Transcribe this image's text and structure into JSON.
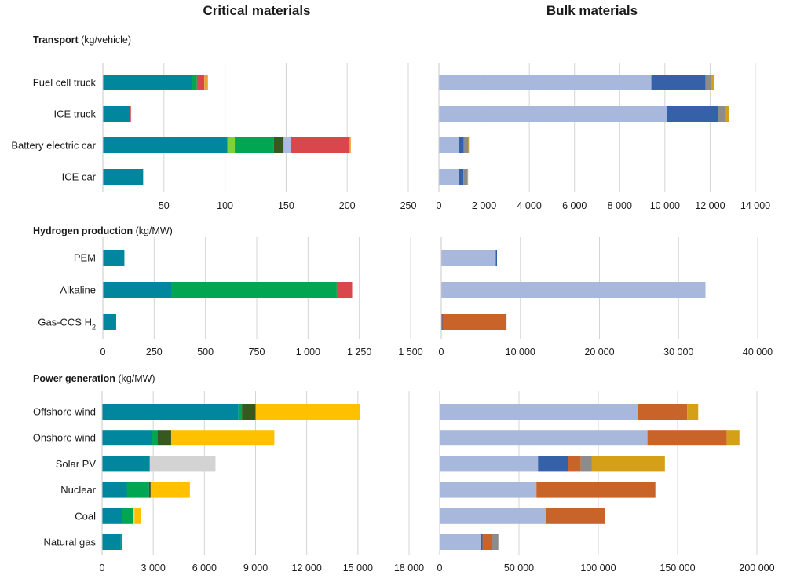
{
  "column_titles": {
    "critical": "Critical materials",
    "bulk": "Bulk materials"
  },
  "sections": [
    {
      "title": "Transport",
      "unit": "(kg/vehicle)"
    },
    {
      "title": "Hydrogen production",
      "unit": "(kg/MW)"
    },
    {
      "title": "Power generation",
      "unit": "(kg/MW)"
    }
  ],
  "chart_data": [
    {
      "type": "bar",
      "orientation": "horizontal",
      "stacked": true,
      "panel": "Transport - Critical materials",
      "categories": [
        "Fuel cell truck",
        "ICE truck",
        "Battery electric car",
        "ICE car"
      ],
      "xlim": [
        0,
        250
      ],
      "ticks": [
        {
          "v": 50,
          "label": "50"
        },
        {
          "v": 100,
          "label": "100"
        },
        {
          "v": 150,
          "label": "150"
        },
        {
          "v": 200,
          "label": "200"
        },
        {
          "v": 250,
          "label": "250"
        }
      ],
      "series": [
        {
          "color": "#00879e",
          "values": [
            73,
            22,
            102,
            33
          ]
        },
        {
          "color": "#00a651",
          "values": [
            4,
            0,
            0,
            0
          ]
        },
        {
          "color": "#7fd13b",
          "values": [
            0,
            0,
            6,
            0
          ]
        },
        {
          "color": "#00a651",
          "values": [
            0,
            0,
            32,
            0
          ]
        },
        {
          "color": "#37581f",
          "values": [
            0,
            0,
            8,
            0
          ]
        },
        {
          "color": "#aebce0",
          "values": [
            0,
            0,
            6,
            0
          ]
        },
        {
          "color": "#d9464c",
          "values": [
            6,
            1,
            48,
            0
          ]
        },
        {
          "color": "#e6a33a",
          "values": [
            3,
            0,
            1,
            0
          ]
        }
      ]
    },
    {
      "type": "bar",
      "orientation": "horizontal",
      "stacked": true,
      "panel": "Transport - Bulk materials",
      "categories": [
        "Fuel cell truck",
        "ICE truck",
        "Battery electric car",
        "ICE car"
      ],
      "xlim": [
        0,
        14000
      ],
      "ticks": [
        {
          "v": 0,
          "label": "0"
        },
        {
          "v": 2000,
          "label": "2 000"
        },
        {
          "v": 4000,
          "label": "4 000"
        },
        {
          "v": 6000,
          "label": "6 000"
        },
        {
          "v": 8000,
          "label": "8 000"
        },
        {
          "v": 10000,
          "label": "10 000"
        },
        {
          "v": 12000,
          "label": "12 000"
        },
        {
          "v": 14000,
          "label": "14 000"
        }
      ],
      "series": [
        {
          "color": "#a8b7dc",
          "values": [
            9400,
            10100,
            900,
            900
          ]
        },
        {
          "color": "#3461a8",
          "values": [
            2400,
            2250,
            200,
            180
          ]
        },
        {
          "color": "#8c8c8c",
          "values": [
            250,
            350,
            200,
            180
          ]
        },
        {
          "color": "#d4a017",
          "values": [
            120,
            130,
            30,
            30
          ]
        }
      ]
    },
    {
      "type": "bar",
      "orientation": "horizontal",
      "stacked": true,
      "panel": "Hydrogen production - Critical materials",
      "categories": [
        "PEM",
        "Alkaline",
        "Gas-CCS H2"
      ],
      "xlim": [
        0,
        1500
      ],
      "ticks": [
        {
          "v": 0,
          "label": "0"
        },
        {
          "v": 250,
          "label": "250"
        },
        {
          "v": 500,
          "label": "500"
        },
        {
          "v": 750,
          "label": "750"
        },
        {
          "v": 1000,
          "label": "1 000"
        },
        {
          "v": 1250,
          "label": "1 250"
        },
        {
          "v": 1500,
          "label": "1 500"
        }
      ],
      "series": [
        {
          "color": "#00879e",
          "values": [
            105,
            335,
            65
          ]
        },
        {
          "color": "#00a651",
          "values": [
            0,
            805,
            0
          ]
        },
        {
          "color": "#d9464c",
          "values": [
            0,
            75,
            0
          ]
        }
      ]
    },
    {
      "type": "bar",
      "orientation": "horizontal",
      "stacked": true,
      "panel": "Hydrogen production - Bulk materials",
      "categories": [
        "PEM",
        "Alkaline",
        "Gas-CCS H2"
      ],
      "xlim": [
        0,
        40000
      ],
      "ticks": [
        {
          "v": 0,
          "label": "0"
        },
        {
          "v": 10000,
          "label": "10 000"
        },
        {
          "v": 20000,
          "label": "20 000"
        },
        {
          "v": 30000,
          "label": "30 000"
        },
        {
          "v": 40000,
          "label": "40 000"
        }
      ],
      "series": [
        {
          "color": "#a8b7dc",
          "values": [
            6900,
            33400,
            0
          ]
        },
        {
          "color": "#3461a8",
          "values": [
            150,
            0,
            150
          ]
        },
        {
          "color": "#c8642a",
          "values": [
            0,
            0,
            8100
          ]
        }
      ]
    },
    {
      "type": "bar",
      "orientation": "horizontal",
      "stacked": true,
      "panel": "Power generation - Critical materials",
      "categories": [
        "Offshore wind",
        "Onshore wind",
        "Solar PV",
        "Nuclear",
        "Coal",
        "Natural gas"
      ],
      "xlim": [
        0,
        18000
      ],
      "ticks": [
        {
          "v": 0,
          "label": "0"
        },
        {
          "v": 3000,
          "label": "3 000"
        },
        {
          "v": 6000,
          "label": "6 000"
        },
        {
          "v": 9000,
          "label": "9 000"
        },
        {
          "v": 12000,
          "label": "12 000"
        },
        {
          "v": 15000,
          "label": "15 000"
        },
        {
          "v": 18000,
          "label": "18 000"
        }
      ],
      "series": [
        {
          "color": "#00879e",
          "values": [
            8000,
            2900,
            2800,
            1450,
            1150,
            1100
          ]
        },
        {
          "color": "#00a651",
          "values": [
            200,
            350,
            0,
            1300,
            650,
            100
          ]
        },
        {
          "color": "#37581f",
          "values": [
            800,
            800,
            0,
            100,
            0,
            0
          ]
        },
        {
          "color": "#d3d3d3",
          "values": [
            0,
            0,
            3850,
            0,
            100,
            0
          ]
        },
        {
          "color": "#ffc000",
          "values": [
            6100,
            6050,
            0,
            2300,
            400,
            0
          ]
        }
      ]
    },
    {
      "type": "bar",
      "orientation": "horizontal",
      "stacked": true,
      "panel": "Power generation - Bulk materials",
      "categories": [
        "Offshore wind",
        "Onshore wind",
        "Solar PV",
        "Nuclear",
        "Coal",
        "Natural gas"
      ],
      "xlim": [
        0,
        200000
      ],
      "ticks": [
        {
          "v": 0,
          "label": "0"
        },
        {
          "v": 50000,
          "label": "50 000"
        },
        {
          "v": 100000,
          "label": "100 000"
        },
        {
          "v": 150000,
          "label": "150 000"
        },
        {
          "v": 200000,
          "label": "200 000"
        }
      ],
      "series": [
        {
          "color": "#a8b7dc",
          "values": [
            125000,
            131000,
            62000,
            61000,
            67000,
            26000
          ]
        },
        {
          "color": "#3461a8",
          "values": [
            0,
            0,
            19000,
            0,
            0,
            1000
          ]
        },
        {
          "color": "#c8642a",
          "values": [
            31000,
            50000,
            8000,
            75000,
            37000,
            6000
          ]
        },
        {
          "color": "#8c8c8c",
          "values": [
            0,
            0,
            7000,
            0,
            0,
            4000
          ]
        },
        {
          "color": "#d4a017",
          "values": [
            7000,
            8000,
            46000,
            0,
            0,
            0
          ]
        }
      ]
    }
  ]
}
